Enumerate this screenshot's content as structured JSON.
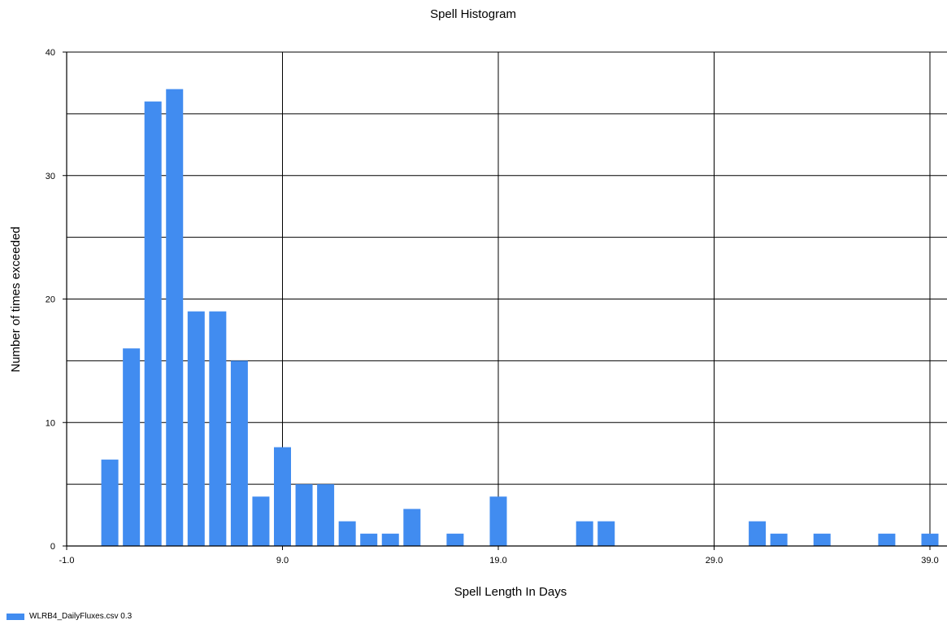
{
  "chart_data": {
    "type": "bar",
    "title": "Spell Histogram",
    "xlabel": "Spell Length In Days",
    "ylabel": "Number of times exceeded",
    "xlim": [
      -1.0,
      39.5
    ],
    "ylim": [
      0,
      40
    ],
    "x_ticks": [
      "-1.0",
      "9.0",
      "19.0",
      "29.0",
      "39.0"
    ],
    "x_tick_values": [
      -1,
      9,
      19,
      29,
      39
    ],
    "y_ticks": [
      "0",
      "10",
      "20",
      "30",
      "40"
    ],
    "y_tick_values": [
      0,
      10,
      20,
      30,
      40
    ],
    "y_grid": [
      0,
      5,
      10,
      15,
      20,
      25,
      30,
      35,
      40
    ],
    "grid": true,
    "legend_position": "bottom-left",
    "color": "#418cf0",
    "series": [
      {
        "name": "WLRB4_DailyFluxes.csv 0.3",
        "x": [
          1,
          2,
          3,
          4,
          5,
          6,
          7,
          8,
          9,
          10,
          11,
          12,
          13,
          14,
          15,
          17,
          19,
          23,
          24,
          31,
          32,
          34,
          37,
          39
        ],
        "values": [
          7,
          16,
          36,
          37,
          19,
          19,
          15,
          4,
          8,
          5,
          5,
          2,
          1,
          1,
          3,
          1,
          4,
          2,
          2,
          2,
          1,
          1,
          1,
          1
        ]
      }
    ]
  }
}
